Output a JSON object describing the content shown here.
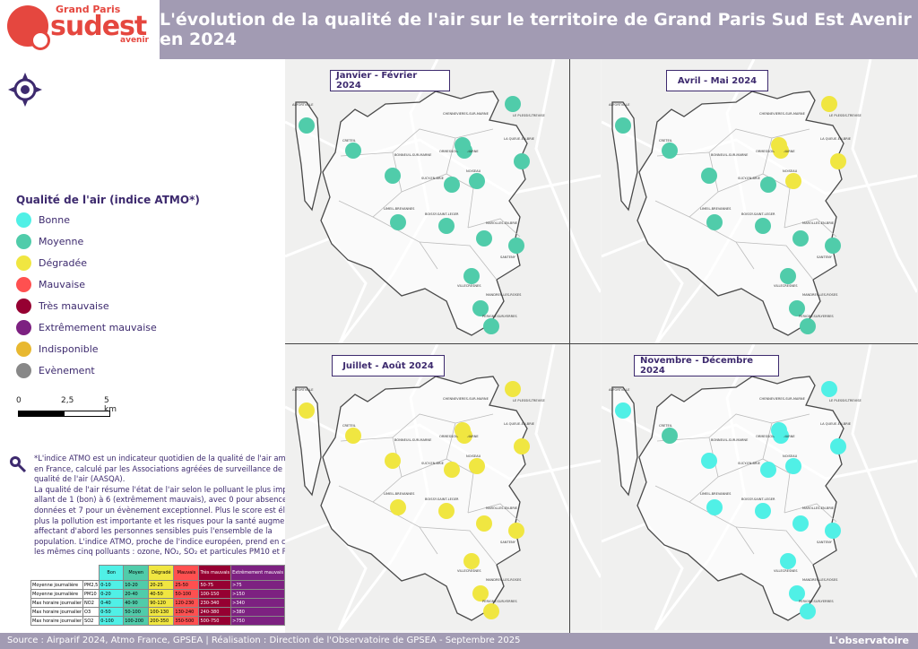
{
  "header": {
    "title": "L'évolution de la qualité de l'air sur le territoire de Grand Paris Sud Est Avenir en 2024",
    "logo": {
      "line1": "Grand Paris",
      "line2": "sudest",
      "line3": "avenir"
    }
  },
  "legend": {
    "title": "Qualité de l'air (indice ATMO*)",
    "items": [
      {
        "label": "Bonne",
        "color": "#50f0e6"
      },
      {
        "label": "Moyenne",
        "color": "#50ccaa"
      },
      {
        "label": "Dégradée",
        "color": "#f0e641"
      },
      {
        "label": "Mauvaise",
        "color": "#ff5050"
      },
      {
        "label": "Très mauvaise",
        "color": "#960032"
      },
      {
        "label": "Extrêmement mauvaise",
        "color": "#7d2181"
      },
      {
        "label": "Indisponible",
        "color": "#e8b830"
      },
      {
        "label": "Evènement",
        "color": "#888888"
      }
    ]
  },
  "scale": {
    "labels": [
      "0",
      "2,5",
      "5 km"
    ]
  },
  "note": {
    "p1": "*L'indice ATMO est un indicateur quotidien de la qualité de l'air ambiant en France, calculé par les Associations agréées de surveillance de la qualité de l'air (AASQA).",
    "p2": "La qualité de l'air résume l'état de l'air selon le polluant le plus impactant, allant de 1 (bon) à 6 (extrêmement mauvais), avec 0 pour absence de données et 7 pour un évènement exceptionnel. Plus le score est élevé, plus la pollution est importante et les risques pour la santé augmentent, affectant d'abord les personnes sensibles puis l'ensemble de la population. L'indice ATMO, proche de l'indice européen, prend en compte les mêmes cinq polluants : ozone, NO₂, SO₂ et particules PM10 et PM2,5."
  },
  "threshold_table": {
    "headers": [
      "",
      "",
      "Bon",
      "Moyen",
      "Dégradé",
      "Mauvais",
      "Très mauvais",
      "Extrêmement mauvais"
    ],
    "rows": [
      [
        "Moyenne journalière",
        "PM2,5",
        "0-10",
        "10-20",
        "20-25",
        "25-50",
        "50-75",
        ">75"
      ],
      [
        "Moyenne journalière",
        "PM10",
        "0-20",
        "20-40",
        "40-50",
        "50-100",
        "100-150",
        ">150"
      ],
      [
        "Max horaire journalier",
        "NO2",
        "0-40",
        "40-90",
        "90-120",
        "120-230",
        "230-340",
        ">340"
      ],
      [
        "Max horaire journalier",
        "O3",
        "0-50",
        "50-100",
        "100-130",
        "130-240",
        "240-380",
        ">380"
      ],
      [
        "Max horaire journalier",
        "SO2",
        "0-100",
        "100-200",
        "200-350",
        "350-500",
        "500-750",
        ">750"
      ]
    ],
    "colors": [
      "#50f0e6",
      "#50ccaa",
      "#f0e641",
      "#ff5050",
      "#960032",
      "#7d2181"
    ]
  },
  "maps": [
    {
      "period": "Janvier - Février 2024",
      "category": "mixed",
      "colors": [
        "#50ccaa"
      ]
    },
    {
      "period": "Avril - Mai 2024",
      "category": "mixed",
      "colors": [
        "#50ccaa",
        "#f0e641"
      ]
    },
    {
      "period": "Juillet - Août 2024",
      "category": "mixed",
      "colors": [
        "#f0e641"
      ]
    },
    {
      "period": "Novembre - Décembre 2024",
      "category": "mixed",
      "colors": [
        "#50f0e6",
        "#50ccaa"
      ]
    }
  ],
  "communes": [
    "ALFORTVILLE",
    "CRETEIL",
    "BONNEUIL-SUR-MARNE",
    "CHENNEVIERES-SUR-MARNE",
    "LE PLESSIS-TREVISE",
    "LA QUEUE-EN-BRIE",
    "ORMESSON-SUR-MARNE",
    "NOISEAU",
    "SUCY-EN-BRIE",
    "LIMEIL-BREVANNES",
    "BOISSY-SAINT-LEGER",
    "MAROLLES-EN-BRIE",
    "SANTENY",
    "VILLECRESNES",
    "MANDRES-LES-ROSES",
    "PERIGNY-SUR-YERRES"
  ],
  "station_colors": {
    "q1": [
      "m",
      "m",
      "m",
      "m",
      "m",
      "m",
      "m",
      "m",
      "m",
      "m",
      "m",
      "m",
      "m",
      "m",
      "m",
      "m"
    ],
    "q2": [
      "m",
      "m",
      "m",
      "y",
      "y",
      "y",
      "y",
      "y",
      "m",
      "m",
      "m",
      "m",
      "m",
      "m",
      "m",
      "m"
    ],
    "q3": [
      "y",
      "y",
      "y",
      "y",
      "y",
      "y",
      "y",
      "y",
      "y",
      "y",
      "y",
      "y",
      "y",
      "y",
      "y",
      "y"
    ],
    "q4": [
      "b",
      "m",
      "b",
      "b",
      "b",
      "b",
      "b",
      "b",
      "b",
      "b",
      "b",
      "b",
      "b",
      "b",
      "b",
      "b"
    ]
  },
  "footer": {
    "source": "Source : Airparif 2024, Atmo France, GPSEA | Réalisation : Direction de l'Observatoire de GPSEA - Septembre 2025",
    "brand": "L'observatoire"
  }
}
